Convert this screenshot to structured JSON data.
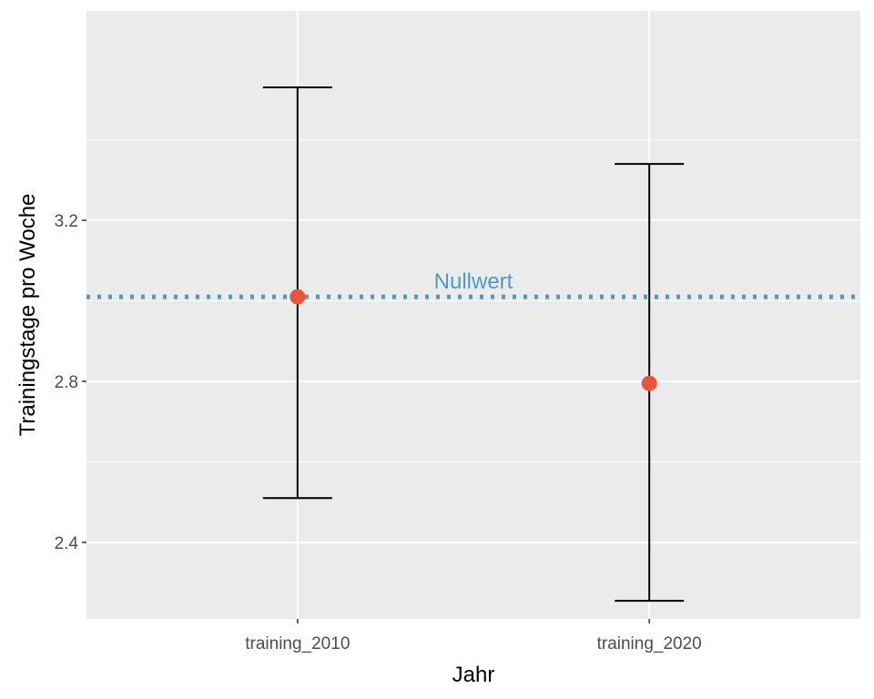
{
  "chart_data": {
    "type": "errorbar",
    "categories": [
      "training_2010",
      "training_2020"
    ],
    "points": [
      {
        "x": "training_2010",
        "y": 3.01,
        "ymin": 2.51,
        "ymax": 3.53
      },
      {
        "x": "training_2020",
        "y": 2.795,
        "ymin": 2.255,
        "ymax": 3.34
      }
    ],
    "reference_line": {
      "y": 3.01,
      "label": "Nullwert",
      "style": "dotted",
      "color": "#5499c0"
    },
    "xlabel": "Jahr",
    "ylabel": "Trainingstage pro Woche",
    "yticks": [
      "2.4",
      "2.8",
      "3.2"
    ],
    "ylim": [
      2.21,
      3.72
    ],
    "grid": true,
    "colors": {
      "panel": "#ebebeb",
      "grid": "#ffffff",
      "point": "#e8553e",
      "errorbar": "#000000",
      "tick_text": "#4d4d4d"
    }
  }
}
